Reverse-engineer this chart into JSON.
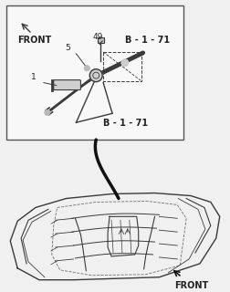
{
  "bg_color": "#f0f0f0",
  "line_color": "#3a3a3a",
  "box_color": "#f0f0f0",
  "text_color": "#222222",
  "labels": {
    "front_upper": "FRONT",
    "front_lower": "FRONT",
    "b171_upper": "B - 1 - 71",
    "b171_lower": "B - 1 - 71",
    "num49": "49",
    "num5": "5",
    "num1": "1"
  },
  "font_size_label": 7.0,
  "font_size_partnum": 6.5
}
